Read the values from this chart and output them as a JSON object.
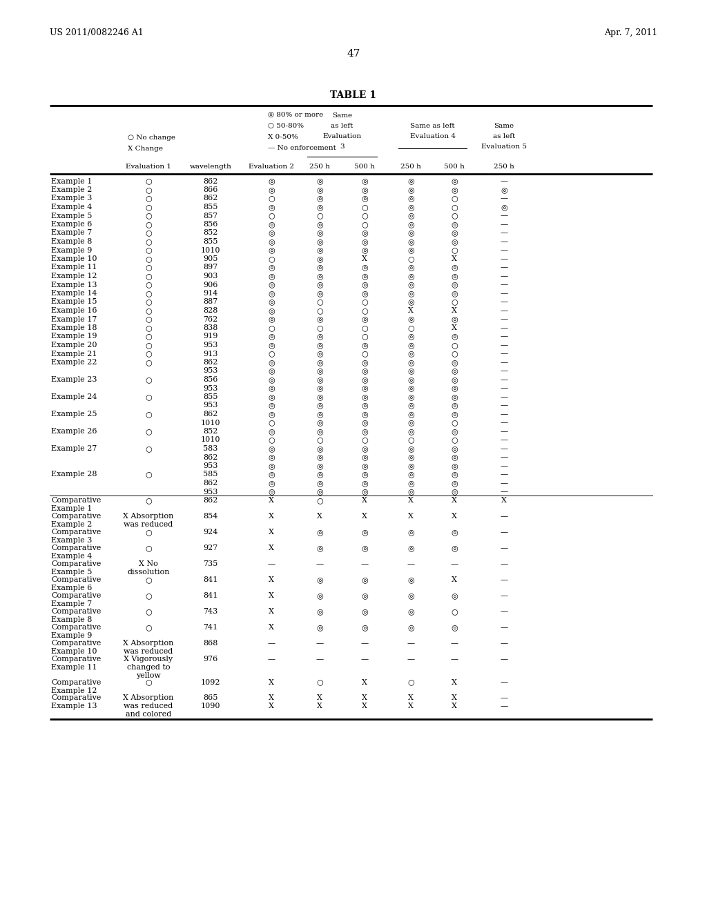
{
  "header_left": "US 2011/0082246 A1",
  "header_right": "Apr. 7, 2011",
  "page_number": "47",
  "table_title": "TABLE 1",
  "rows": [
    [
      "Example 1",
      "○",
      "862",
      "◎",
      "◎",
      "◎",
      "◎",
      "◎",
      "—"
    ],
    [
      "Example 2",
      "○",
      "866",
      "◎",
      "◎",
      "◎",
      "◎",
      "◎",
      "◎"
    ],
    [
      "Example 3",
      "○",
      "862",
      "○",
      "◎",
      "◎",
      "◎",
      "○",
      "—"
    ],
    [
      "Example 4",
      "○",
      "855",
      "◎",
      "◎",
      "○",
      "◎",
      "○",
      "◎"
    ],
    [
      "Example 5",
      "○",
      "857",
      "○",
      "○",
      "○",
      "◎",
      "○",
      "—"
    ],
    [
      "Example 6",
      "○",
      "856",
      "◎",
      "◎",
      "○",
      "◎",
      "◎",
      "—"
    ],
    [
      "Example 7",
      "○",
      "852",
      "◎",
      "◎",
      "◎",
      "◎",
      "◎",
      "—"
    ],
    [
      "Example 8",
      "○",
      "855",
      "◎",
      "◎",
      "◎",
      "◎",
      "◎",
      "—"
    ],
    [
      "Example 9",
      "○",
      "1010",
      "◎",
      "◎",
      "◎",
      "◎",
      "○",
      "—"
    ],
    [
      "Example 10",
      "○",
      "905",
      "○",
      "◎",
      "X",
      "○",
      "X",
      "—"
    ],
    [
      "Example 11",
      "○",
      "897",
      "◎",
      "◎",
      "◎",
      "◎",
      "◎",
      "—"
    ],
    [
      "Example 12",
      "○",
      "903",
      "◎",
      "◎",
      "◎",
      "◎",
      "◎",
      "—"
    ],
    [
      "Example 13",
      "○",
      "906",
      "◎",
      "◎",
      "◎",
      "◎",
      "◎",
      "—"
    ],
    [
      "Example 14",
      "○",
      "914",
      "◎",
      "◎",
      "◎",
      "◎",
      "◎",
      "—"
    ],
    [
      "Example 15",
      "○",
      "887",
      "◎",
      "○",
      "○",
      "◎",
      "○",
      "—"
    ],
    [
      "Example 16",
      "○",
      "828",
      "◎",
      "○",
      "○",
      "X",
      "X",
      "—"
    ],
    [
      "Example 17",
      "○",
      "762",
      "◎",
      "◎",
      "◎",
      "◎",
      "◎",
      "—"
    ],
    [
      "Example 18",
      "○",
      "838",
      "○",
      "○",
      "○",
      "○",
      "X",
      "—"
    ],
    [
      "Example 19",
      "○",
      "919",
      "◎",
      "◎",
      "○",
      "◎",
      "◎",
      "—"
    ],
    [
      "Example 20",
      "○",
      "953",
      "◎",
      "◎",
      "◎",
      "◎",
      "○",
      "—"
    ],
    [
      "Example 21",
      "○",
      "913",
      "○",
      "◎",
      "○",
      "◎",
      "○",
      "—"
    ],
    [
      "Example 22",
      "○",
      "862",
      "◎",
      "◎",
      "◎",
      "◎",
      "◎",
      "—"
    ],
    [
      "",
      "",
      "953",
      "◎",
      "◎",
      "◎",
      "◎",
      "◎",
      "—"
    ],
    [
      "Example 23",
      "○",
      "856",
      "◎",
      "◎",
      "◎",
      "◎",
      "◎",
      "—"
    ],
    [
      "",
      "",
      "953",
      "◎",
      "◎",
      "◎",
      "◎",
      "◎",
      "—"
    ],
    [
      "Example 24",
      "○",
      "855",
      "◎",
      "◎",
      "◎",
      "◎",
      "◎",
      "—"
    ],
    [
      "",
      "",
      "953",
      "◎",
      "◎",
      "◎",
      "◎",
      "◎",
      "—"
    ],
    [
      "Example 25",
      "○",
      "862",
      "◎",
      "◎",
      "◎",
      "◎",
      "◎",
      "—"
    ],
    [
      "",
      "",
      "1010",
      "○",
      "◎",
      "◎",
      "◎",
      "○",
      "—"
    ],
    [
      "Example 26",
      "○",
      "852",
      "◎",
      "◎",
      "◎",
      "◎",
      "◎",
      "—"
    ],
    [
      "",
      "",
      "1010",
      "○",
      "○",
      "○",
      "○",
      "○",
      "—"
    ],
    [
      "Example 27",
      "○",
      "583",
      "◎",
      "◎",
      "◎",
      "◎",
      "◎",
      "—"
    ],
    [
      "",
      "",
      "862",
      "◎",
      "◎",
      "◎",
      "◎",
      "◎",
      "—"
    ],
    [
      "",
      "",
      "953",
      "◎",
      "◎",
      "◎",
      "◎",
      "◎",
      "—"
    ],
    [
      "Example 28",
      "○",
      "585",
      "◎",
      "◎",
      "◎",
      "◎",
      "◎",
      "—"
    ],
    [
      "",
      "",
      "862",
      "◎",
      "◎",
      "◎",
      "◎",
      "◎",
      "—"
    ],
    [
      "",
      "",
      "953",
      "◎",
      "◎",
      "◎",
      "◎",
      "◎",
      "—"
    ],
    [
      "Comparative\nExample 1",
      "○",
      "862",
      "X",
      "○",
      "X",
      "X",
      "X",
      "X"
    ],
    [
      "Comparative\nExample 2",
      "X Absorption\nwas reduced",
      "854",
      "X",
      "X",
      "X",
      "X",
      "X",
      "—"
    ],
    [
      "Comparative\nExample 3",
      "○",
      "924",
      "X",
      "◎",
      "◎",
      "◎",
      "◎",
      "—"
    ],
    [
      "Comparative\nExample 4",
      "○",
      "927",
      "X",
      "◎",
      "◎",
      "◎",
      "◎",
      "—"
    ],
    [
      "Comparative\nExample 5",
      "X No\ndissolution",
      "735",
      "—",
      "—",
      "—",
      "—",
      "—",
      "—"
    ],
    [
      "Comparative\nExample 6",
      "○",
      "841",
      "X",
      "◎",
      "◎",
      "◎",
      "X",
      "—"
    ],
    [
      "Comparative\nExample 7",
      "○",
      "841",
      "X",
      "◎",
      "◎",
      "◎",
      "◎",
      "—"
    ],
    [
      "Comparative\nExample 8",
      "○",
      "743",
      "X",
      "◎",
      "◎",
      "◎",
      "○",
      "—"
    ],
    [
      "Comparative\nExample 9",
      "○",
      "741",
      "X",
      "◎",
      "◎",
      "◎",
      "◎",
      "—"
    ],
    [
      "Comparative\nExample 10",
      "X Absorption\nwas reduced",
      "868",
      "—",
      "—",
      "—",
      "—",
      "—",
      "—"
    ],
    [
      "Comparative\nExample 11",
      "X Vigorously\nchanged to\nyellow",
      "976",
      "—",
      "—",
      "—",
      "—",
      "—",
      "—"
    ],
    [
      "Comparative\nExample 12",
      "○",
      "1092",
      "X",
      "○",
      "X",
      "○",
      "X",
      "—"
    ],
    [
      "Comparative\nExample 13",
      "X Absorption\nwas reduced\nand colored",
      "865\n1090",
      "X\nX",
      "X\nX",
      "X\nX",
      "X\nX",
      "X\nX",
      "—\n—"
    ]
  ]
}
